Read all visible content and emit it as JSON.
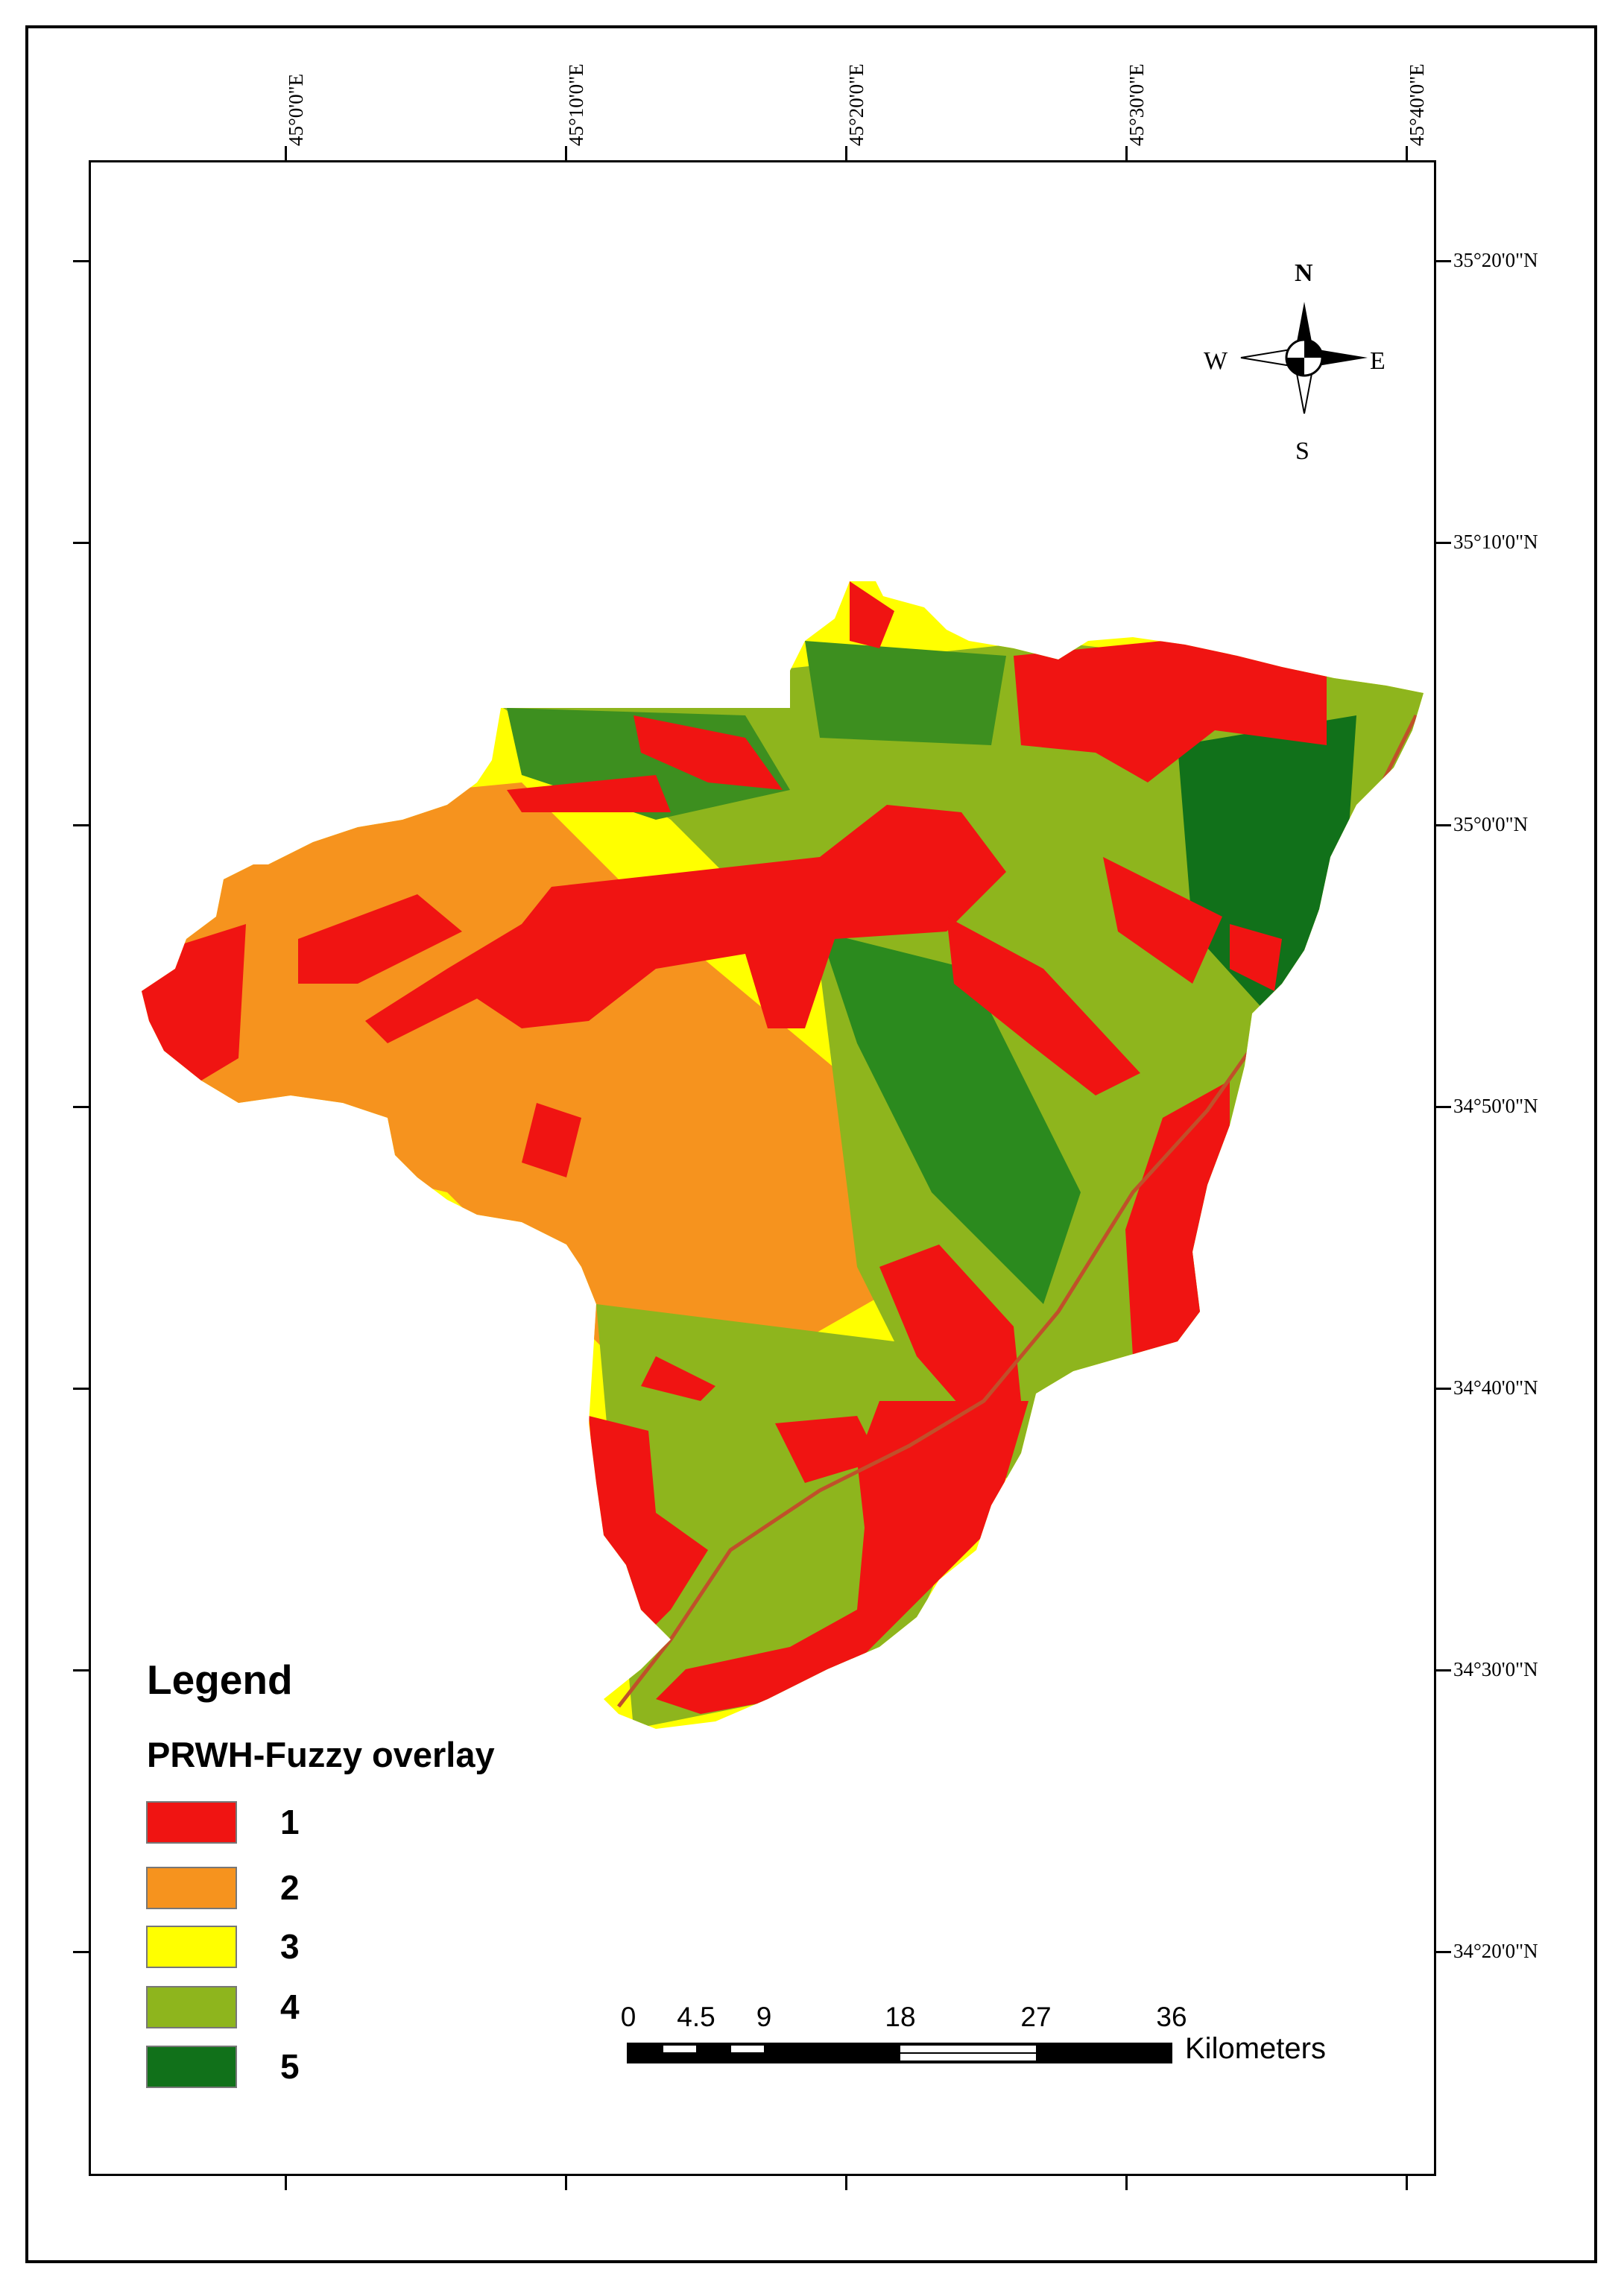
{
  "map": {
    "longitude_labels": [
      "45°0'0\"E",
      "45°10'0\"E",
      "45°20'0\"E",
      "45°30'0\"E",
      "45°40'0\"E"
    ],
    "latitude_labels": [
      "35°20'0\"N",
      "35°10'0\"N",
      "35°0'0\"N",
      "34°50'0\"N",
      "34°40'0\"N",
      "34°30'0\"N",
      "34°20'0\"N"
    ]
  },
  "legend": {
    "title": "Legend",
    "subtitle": "PRWH-Fuzzy overlay",
    "items": [
      {
        "label": "1",
        "color": "#f01412"
      },
      {
        "label": "2",
        "color": "#f6931e"
      },
      {
        "label": "3",
        "color": "#ffff00"
      },
      {
        "label": "4",
        "color": "#8eb51d"
      },
      {
        "label": "5",
        "color": "#11711a"
      }
    ]
  },
  "scale_bar": {
    "numbers": [
      "0",
      "4.5",
      "9",
      "18",
      "27",
      "36"
    ],
    "unit": "Kilometers"
  },
  "north_arrow": {
    "north": "N",
    "south": "S",
    "east": "E",
    "west": "W"
  }
}
